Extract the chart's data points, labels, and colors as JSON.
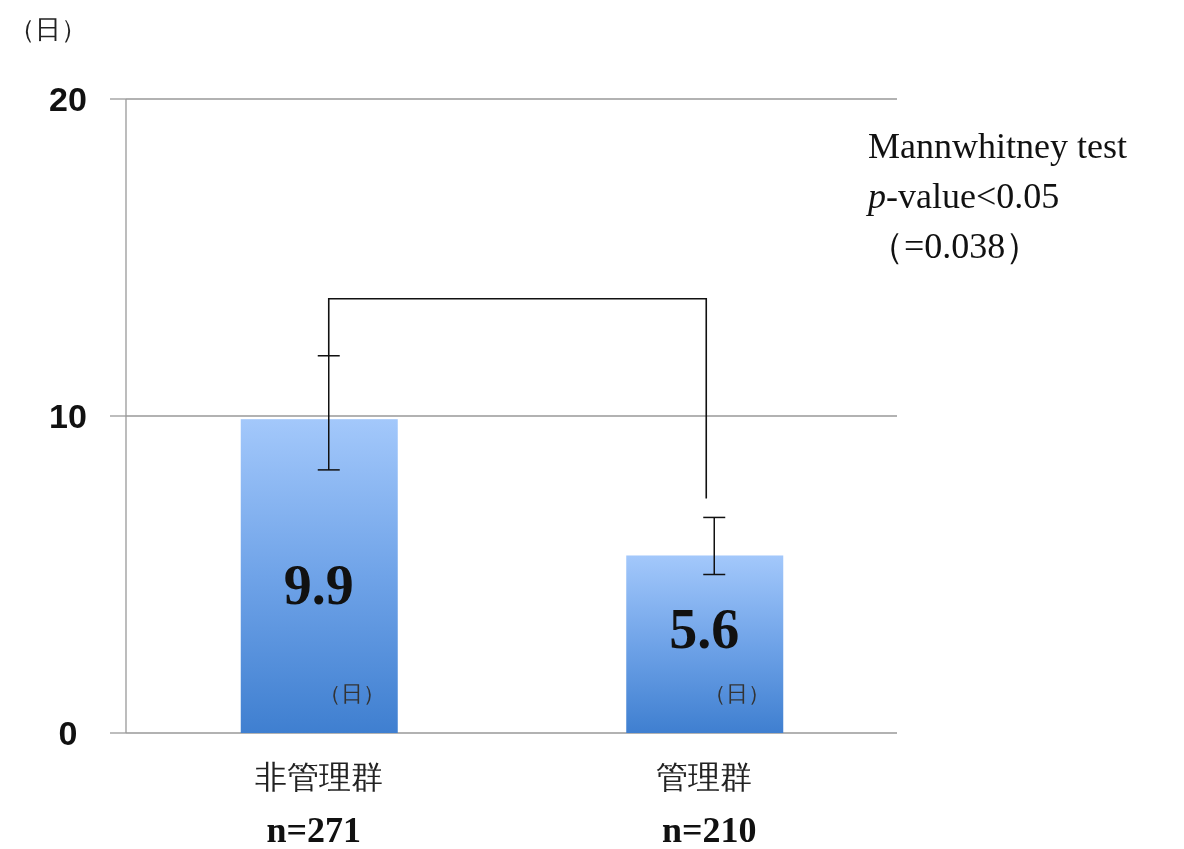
{
  "chart_data": {
    "type": "bar",
    "ylabel": "（日）",
    "categories": [
      "非管理群\nn=271",
      "管理群\nn=210"
    ],
    "values": [
      9.9,
      5.6
    ],
    "color": "#6fa3e8",
    "errors": [
      [
        8.3,
        11.9
      ],
      [
        5.0,
        6.8
      ]
    ],
    "data_labels": true,
    "ylim": [
      0,
      20
    ],
    "yticks": [
      0,
      10,
      20
    ],
    "grid": "y",
    "annotations": [
      "（日）",
      "（日）",
      "Mannwhitney test\np-value<0.05\n（=0.038）"
    ]
  }
}
